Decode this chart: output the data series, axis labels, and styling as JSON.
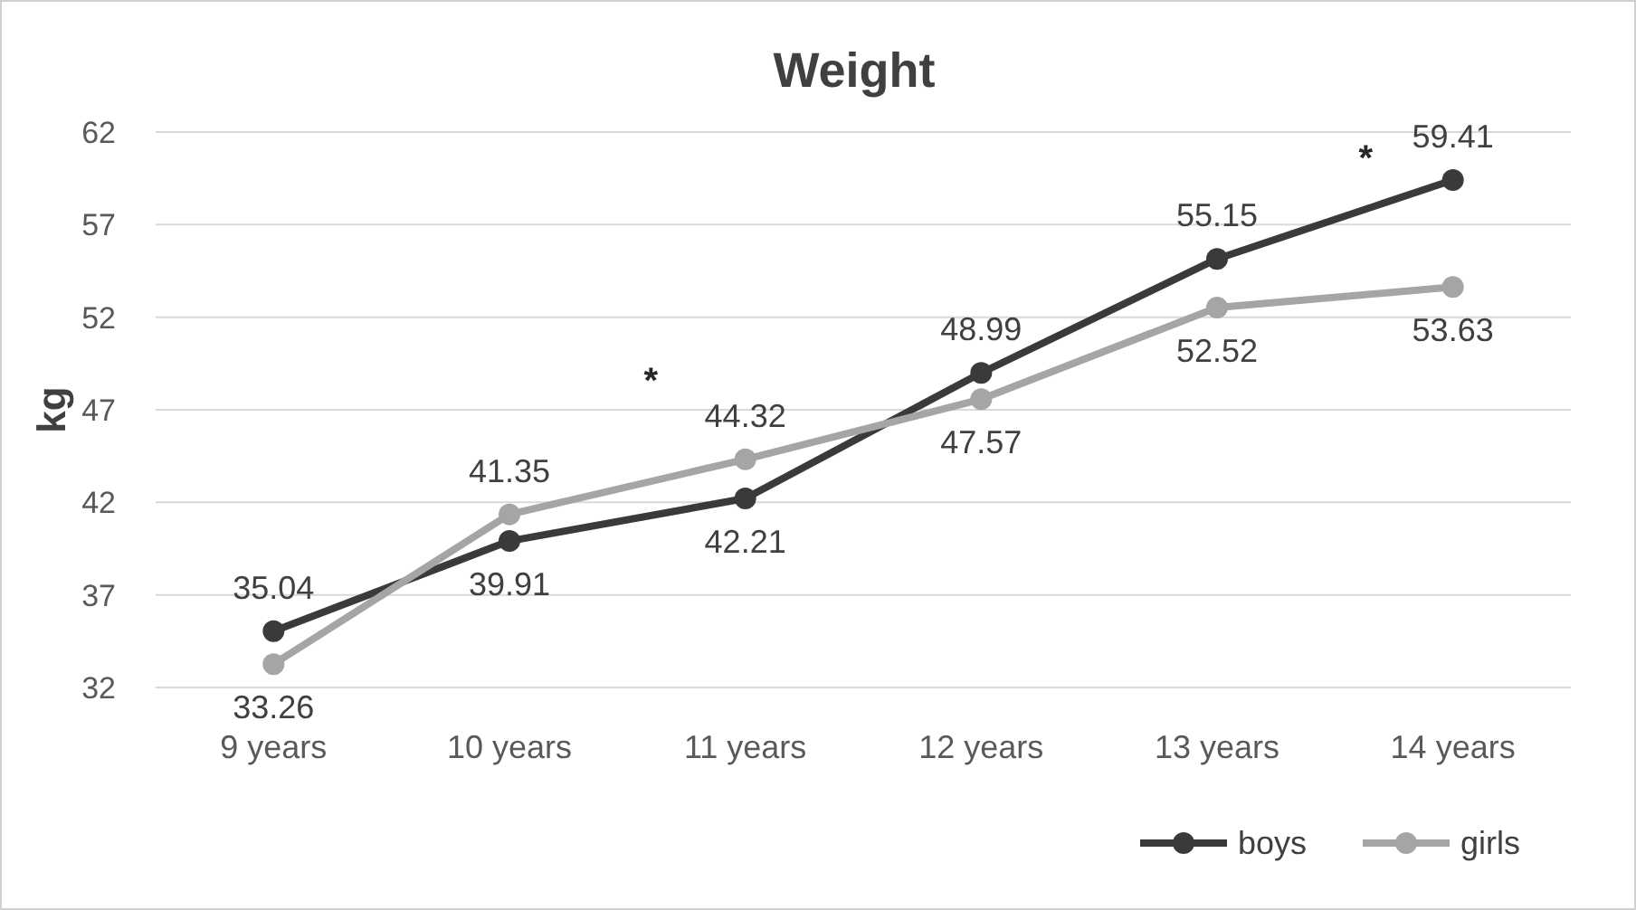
{
  "chart_data": {
    "type": "line",
    "title": "Weight",
    "ylabel": "kg",
    "categories": [
      "9 years",
      "10 years",
      "11 years",
      "12 years",
      "13 years",
      "14 years"
    ],
    "series": [
      {
        "name": "boys",
        "color": "#3a3a3a",
        "values": [
          35.04,
          39.91,
          42.21,
          48.99,
          55.15,
          59.41
        ]
      },
      {
        "name": "girls",
        "color": "#a5a5a5",
        "values": [
          33.26,
          41.35,
          44.32,
          47.57,
          52.52,
          53.63
        ]
      }
    ],
    "ylim": [
      32,
      62
    ],
    "yticks": [
      32,
      37,
      42,
      47,
      52,
      57,
      62
    ],
    "grid": "y",
    "legend": "bottom right",
    "marker": "circle",
    "line_style": "solid",
    "data_labels": true,
    "annotations": [
      "*",
      "*"
    ]
  }
}
